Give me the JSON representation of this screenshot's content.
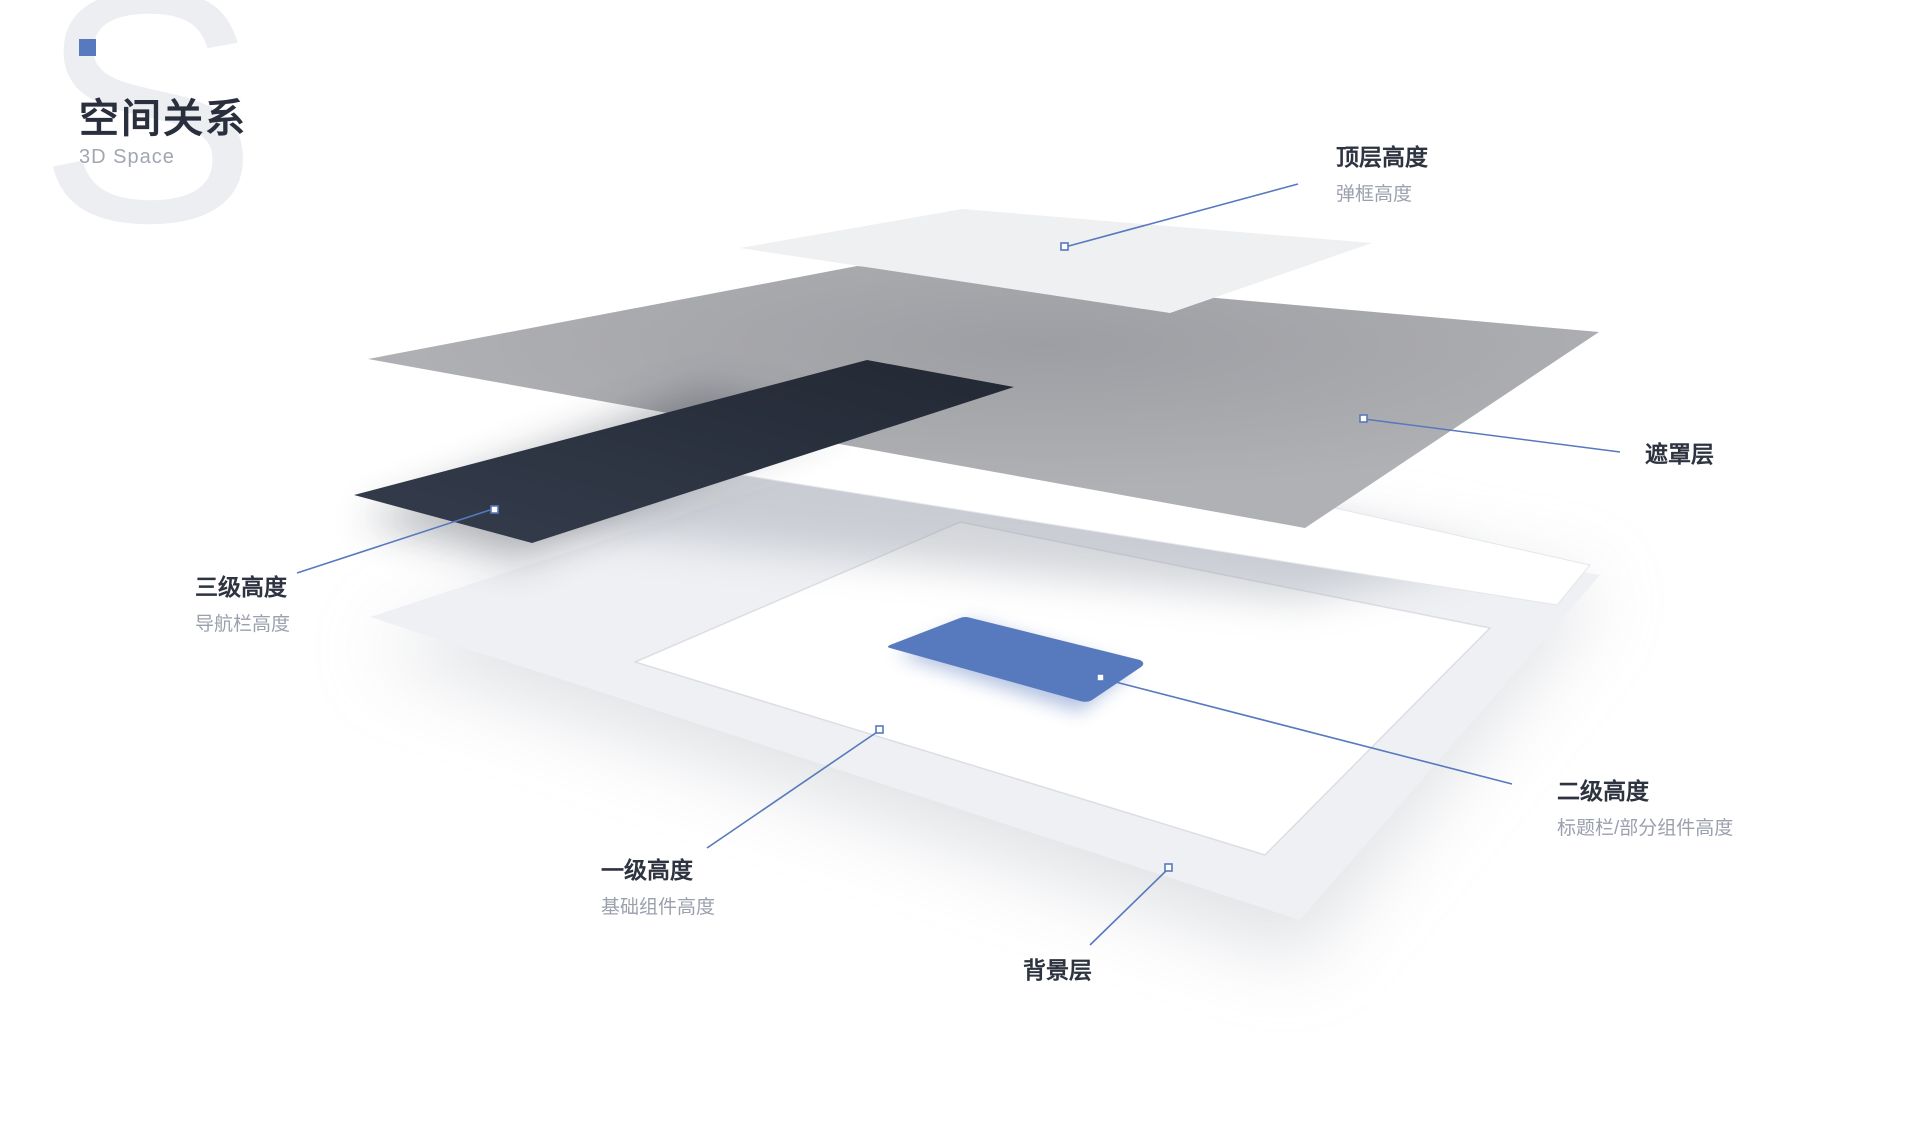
{
  "header": {
    "bg_letter": "S",
    "title": "空间关系",
    "subtitle": "3D Space"
  },
  "colors": {
    "accent": "#5779bd",
    "nav_layer": "#2b3240",
    "mask_layer": "#a9aaad",
    "top_layer": "#eff0f2",
    "background_layer": "#eef0f3",
    "base_layer": "#ffffff",
    "text_primary": "#2e3340",
    "text_secondary": "#9ba0ad"
  },
  "layers": [
    {
      "key": "top",
      "title": "顶层高度",
      "subtitle": "弹框高度"
    },
    {
      "key": "mask",
      "title": "遮罩层",
      "subtitle": ""
    },
    {
      "key": "third",
      "title": "三级高度",
      "subtitle": "导航栏高度"
    },
    {
      "key": "second",
      "title": "二级高度",
      "subtitle": "标题栏/部分组件高度"
    },
    {
      "key": "first",
      "title": "一级高度",
      "subtitle": "基础组件高度"
    },
    {
      "key": "background",
      "title": "背景层",
      "subtitle": ""
    }
  ]
}
